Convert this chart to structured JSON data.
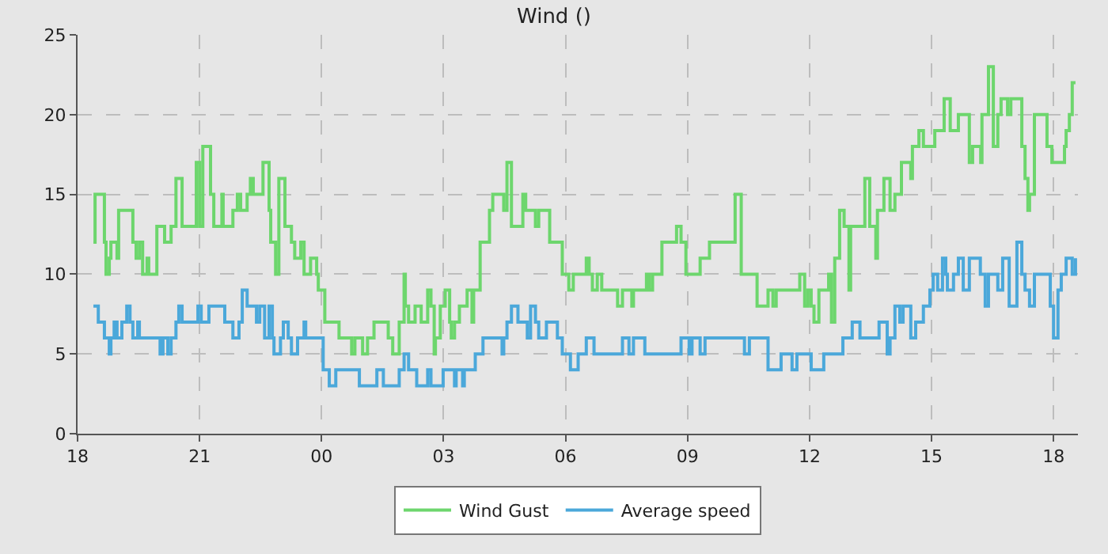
{
  "chart_data": {
    "type": "step",
    "title": "Wind ()",
    "xlim": [
      18,
      42.6
    ],
    "ylim": [
      0,
      25
    ],
    "xticks": [
      {
        "value": 18,
        "label": "18"
      },
      {
        "value": 21,
        "label": "21"
      },
      {
        "value": 24,
        "label": "00"
      },
      {
        "value": 27,
        "label": "03"
      },
      {
        "value": 30,
        "label": "06"
      },
      {
        "value": 33,
        "label": "09"
      },
      {
        "value": 36,
        "label": "12"
      },
      {
        "value": 39,
        "label": "15"
      },
      {
        "value": 42,
        "label": "18"
      }
    ],
    "yticks": [
      0,
      5,
      10,
      15,
      20,
      25
    ],
    "grid": true,
    "legend": "bottom",
    "line_style": "solid",
    "marker": "none",
    "series": [
      {
        "name": "Wind Gust",
        "color": "#6dd66d",
        "x": [
          18.39,
          18.43,
          18.66,
          18.7,
          18.78,
          18.82,
          18.97,
          19.01,
          19.36,
          19.44,
          19.52,
          19.6,
          19.71,
          19.75,
          19.95,
          20.14,
          20.3,
          20.42,
          20.57,
          20.92,
          21.0,
          21.08,
          21.27,
          21.35,
          21.55,
          21.58,
          21.82,
          21.93,
          22.01,
          22.17,
          22.25,
          22.32,
          22.56,
          22.71,
          22.75,
          22.87,
          22.95,
          23.1,
          23.26,
          23.34,
          23.49,
          23.57,
          23.73,
          23.88,
          23.92,
          24.08,
          24.43,
          24.74,
          24.82,
          25.01,
          25.13,
          25.29,
          25.64,
          25.75,
          25.91,
          26.03,
          26.06,
          26.14,
          26.3,
          26.45,
          26.61,
          26.69,
          26.77,
          26.8,
          26.92,
          27.04,
          27.15,
          27.19,
          27.27,
          27.39,
          27.58,
          27.7,
          27.74,
          27.9,
          28.13,
          28.21,
          28.48,
          28.56,
          28.67,
          28.95,
          29.02,
          29.18,
          29.26,
          29.34,
          29.61,
          29.92,
          30.08,
          30.19,
          30.51,
          30.58,
          30.66,
          30.78,
          30.89,
          31.28,
          31.4,
          31.63,
          31.67,
          31.99,
          32.06,
          32.14,
          32.37,
          32.73,
          32.84,
          32.96,
          33.31,
          33.54,
          34.17,
          34.32,
          34.71,
          34.98,
          35.1,
          35.18,
          35.76,
          35.88,
          35.96,
          36.04,
          36.11,
          36.23,
          36.47,
          36.54,
          36.62,
          36.74,
          36.85,
          36.97,
          37.01,
          37.36,
          37.48,
          37.63,
          37.67,
          37.83,
          37.98,
          38.1,
          38.26,
          38.49,
          38.53,
          38.69,
          38.8,
          39.08,
          39.31,
          39.46,
          39.66,
          39.93,
          40.01,
          40.21,
          40.24,
          40.4,
          40.52,
          40.63,
          40.71,
          40.87,
          40.95,
          41.22,
          41.3,
          41.37,
          41.41,
          41.53,
          41.84,
          41.96,
          42.27,
          42.31,
          42.39,
          42.46,
          42.54
        ],
        "values": [
          12,
          15,
          12,
          10,
          11,
          12,
          11,
          14,
          12,
          11,
          12,
          10,
          11,
          10,
          13,
          12,
          13,
          16,
          13,
          17,
          13,
          18,
          15,
          13,
          15,
          13,
          14,
          15,
          14,
          15,
          16,
          15,
          17,
          14,
          12,
          10,
          16,
          13,
          12,
          11,
          12,
          10,
          11,
          10,
          9,
          7,
          6,
          5,
          6,
          5,
          6,
          7,
          6,
          5,
          7,
          10,
          8,
          7,
          8,
          7,
          9,
          8,
          5,
          6,
          8,
          9,
          7,
          6,
          7,
          8,
          9,
          7,
          9,
          12,
          14,
          15,
          14,
          17,
          13,
          15,
          14,
          14,
          13,
          14,
          12,
          10,
          9,
          10,
          11,
          10,
          9,
          10,
          9,
          8,
          9,
          8,
          9,
          10,
          9,
          10,
          12,
          13,
          12,
          10,
          11,
          12,
          15,
          10,
          8,
          9,
          8,
          9,
          10,
          8,
          9,
          8,
          7,
          9,
          10,
          7,
          11,
          14,
          13,
          9,
          13,
          16,
          13,
          11,
          14,
          16,
          14,
          15,
          17,
          16,
          18,
          19,
          18,
          19,
          21,
          19,
          20,
          17,
          18,
          17,
          20,
          23,
          18,
          20,
          21,
          20,
          21,
          18,
          16,
          14,
          15,
          20,
          18,
          17,
          18,
          19,
          20,
          22,
          22
        ]
      },
      {
        "name": "Average speed",
        "color": "#4ba8da",
        "x": [
          18.39,
          18.51,
          18.66,
          18.78,
          18.82,
          18.9,
          18.97,
          19.09,
          19.21,
          19.29,
          19.36,
          19.48,
          19.52,
          20.03,
          20.1,
          20.22,
          20.3,
          20.42,
          20.49,
          20.57,
          20.96,
          21.04,
          21.23,
          21.62,
          21.82,
          21.97,
          22.05,
          22.17,
          22.4,
          22.48,
          22.6,
          22.71,
          22.79,
          22.83,
          22.99,
          23.06,
          23.18,
          23.26,
          23.41,
          23.57,
          23.61,
          24.04,
          24.19,
          24.35,
          24.93,
          25.36,
          25.52,
          25.91,
          26.03,
          26.14,
          26.34,
          26.61,
          26.69,
          26.99,
          27.27,
          27.31,
          27.47,
          27.51,
          27.78,
          27.97,
          28.44,
          28.48,
          28.56,
          28.67,
          28.83,
          29.06,
          29.14,
          29.26,
          29.34,
          29.53,
          29.8,
          29.92,
          30.12,
          30.31,
          30.51,
          30.7,
          31.4,
          31.56,
          31.67,
          31.95,
          32.84,
          33.04,
          33.11,
          33.31,
          33.43,
          34.4,
          34.52,
          34.98,
          35.3,
          35.57,
          35.69,
          36.04,
          36.35,
          36.82,
          37.05,
          37.24,
          37.71,
          37.91,
          37.98,
          38.1,
          38.22,
          38.3,
          38.49,
          38.61,
          38.8,
          38.96,
          39.04,
          39.15,
          39.27,
          39.35,
          39.39,
          39.54,
          39.66,
          39.78,
          39.93,
          40.2,
          40.32,
          40.4,
          40.63,
          40.75,
          40.91,
          41.1,
          41.22,
          41.3,
          41.41,
          41.53,
          41.92,
          42.0,
          42.11,
          42.19,
          42.31,
          42.46,
          42.54
        ],
        "values": [
          8,
          7,
          6,
          5,
          6,
          7,
          6,
          7,
          8,
          7,
          6,
          7,
          6,
          5,
          6,
          5,
          6,
          7,
          8,
          7,
          8,
          7,
          8,
          7,
          6,
          7,
          9,
          8,
          7,
          8,
          6,
          8,
          6,
          5,
          6,
          7,
          6,
          5,
          6,
          7,
          6,
          4,
          3,
          4,
          3,
          4,
          3,
          4,
          5,
          4,
          3,
          4,
          3,
          4,
          3,
          4,
          3,
          4,
          5,
          6,
          5,
          6,
          7,
          8,
          7,
          6,
          8,
          7,
          6,
          7,
          6,
          5,
          4,
          5,
          6,
          5,
          6,
          5,
          6,
          5,
          6,
          5,
          6,
          5,
          6,
          5,
          6,
          4,
          5,
          4,
          5,
          4,
          5,
          6,
          7,
          6,
          7,
          5,
          6,
          8,
          7,
          8,
          6,
          7,
          8,
          9,
          10,
          9,
          11,
          10,
          9,
          10,
          11,
          9,
          11,
          10,
          8,
          10,
          9,
          11,
          8,
          12,
          10,
          9,
          8,
          10,
          8,
          6,
          9,
          10,
          11,
          10,
          11
        ]
      }
    ]
  }
}
